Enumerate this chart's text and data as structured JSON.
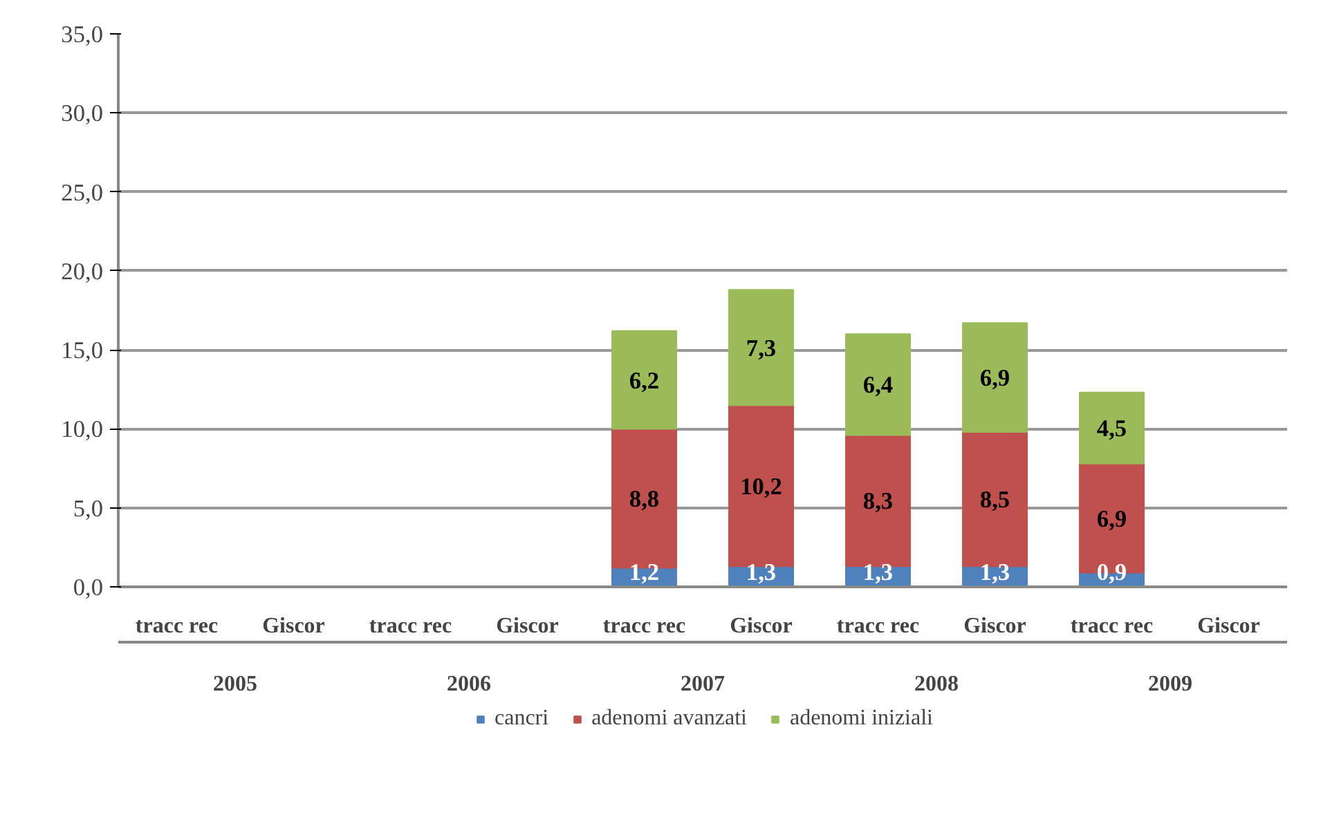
{
  "chart_data": {
    "type": "bar",
    "stacked": true,
    "categories": [
      "tracc rec",
      "Giscor",
      "tracc rec",
      "Giscor",
      "tracc rec",
      "Giscor",
      "tracc rec",
      "Giscor",
      "tracc rec",
      "Giscor"
    ],
    "annotations": [
      "2005",
      "2006",
      "2007",
      "2008",
      "2009"
    ],
    "series": [
      {
        "name": "cancri",
        "color": "#4f81bd",
        "values": [
          null,
          null,
          null,
          null,
          1.2,
          1.3,
          1.3,
          1.3,
          0.9,
          null
        ],
        "value_labels": [
          null,
          null,
          null,
          null,
          "1,2",
          "1,3",
          "1,3",
          "1,3",
          "0,9",
          null
        ]
      },
      {
        "name": "adenomi avanzati",
        "color": "#c0504d",
        "values": [
          null,
          null,
          null,
          null,
          8.8,
          10.2,
          8.3,
          8.5,
          6.9,
          null
        ],
        "value_labels": [
          null,
          null,
          null,
          null,
          "8,8",
          "10,2",
          "8,3",
          "8,5",
          "6,9",
          null
        ]
      },
      {
        "name": "adenomi iniziali",
        "color": "#9bbb59",
        "values": [
          null,
          null,
          null,
          null,
          6.2,
          7.3,
          6.4,
          6.9,
          4.5,
          null
        ],
        "value_labels": [
          null,
          null,
          null,
          null,
          "6,2",
          "7,3",
          "6,4",
          "6,9",
          "4,5",
          null
        ]
      }
    ],
    "ylim": [
      0,
      35
    ],
    "yticks": [
      {
        "value": 0,
        "label": "0,0"
      },
      {
        "value": 5,
        "label": "5,0"
      },
      {
        "value": 10,
        "label": "10,0"
      },
      {
        "value": 15,
        "label": "15,0"
      },
      {
        "value": 20,
        "label": "20,0"
      },
      {
        "value": 25,
        "label": "25,0"
      },
      {
        "value": 30,
        "label": "30,0"
      },
      {
        "value": 35,
        "label": "35,0"
      }
    ],
    "grid": "y",
    "legend": "bottom"
  }
}
